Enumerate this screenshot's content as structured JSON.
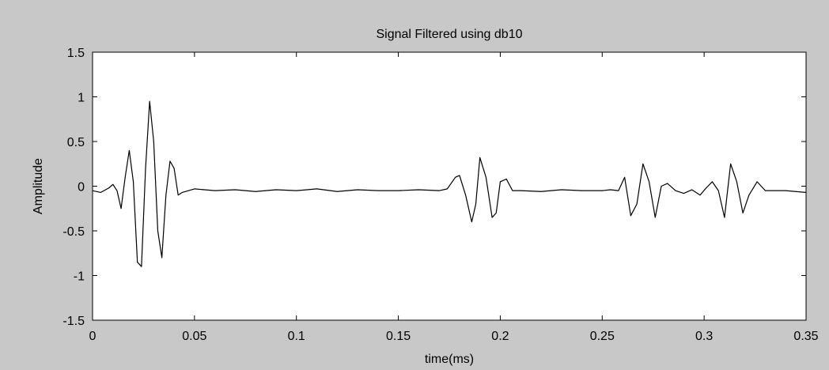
{
  "chart_data": {
    "type": "line",
    "title": "Signal Filtered using db10",
    "xlabel": "time(ms)",
    "ylabel": "Amplitude",
    "xlim": [
      0,
      0.35
    ],
    "ylim": [
      -1.5,
      1.5
    ],
    "xticks": [
      0,
      0.05,
      0.1,
      0.15,
      0.2,
      0.25,
      0.3,
      0.35
    ],
    "xtick_labels": [
      "0",
      "0.05",
      "0.1",
      "0.15",
      "0.2",
      "0.25",
      "0.3",
      "0.35"
    ],
    "yticks": [
      1.5,
      1,
      0.5,
      0,
      -0.5,
      -1,
      -1.5
    ],
    "ytick_labels": [
      "1.5",
      "1",
      "0.5",
      "0",
      "-0.5",
      "-1",
      "-1.5"
    ],
    "grid": false,
    "line_color": "#000000",
    "background_color": "#c8c8c8",
    "plot_background_color": "#ffffff",
    "series": [
      {
        "x": [
          0.0,
          0.004,
          0.008,
          0.01,
          0.012,
          0.014,
          0.016,
          0.018,
          0.02,
          0.022,
          0.024,
          0.026,
          0.028,
          0.03,
          0.032,
          0.034,
          0.036,
          0.038,
          0.04,
          0.042,
          0.044,
          0.05,
          0.06,
          0.07,
          0.08,
          0.09,
          0.1,
          0.11,
          0.12,
          0.13,
          0.14,
          0.15,
          0.16,
          0.17,
          0.174,
          0.178,
          0.18,
          0.183,
          0.186,
          0.188,
          0.19,
          0.193,
          0.196,
          0.198,
          0.2,
          0.203,
          0.206,
          0.21,
          0.22,
          0.23,
          0.24,
          0.25,
          0.254,
          0.258,
          0.261,
          0.264,
          0.267,
          0.27,
          0.273,
          0.276,
          0.279,
          0.282,
          0.286,
          0.29,
          0.294,
          0.298,
          0.301,
          0.304,
          0.307,
          0.31,
          0.313,
          0.316,
          0.319,
          0.322,
          0.326,
          0.33,
          0.34,
          0.35
        ],
        "values": [
          -0.05,
          -0.07,
          -0.02,
          0.02,
          -0.05,
          -0.25,
          0.1,
          0.4,
          0.05,
          -0.85,
          -0.9,
          0.2,
          0.95,
          0.5,
          -0.5,
          -0.8,
          -0.1,
          0.28,
          0.2,
          -0.1,
          -0.07,
          -0.03,
          -0.05,
          -0.04,
          -0.06,
          -0.04,
          -0.05,
          -0.03,
          -0.06,
          -0.04,
          -0.05,
          -0.05,
          -0.04,
          -0.05,
          -0.03,
          0.1,
          0.12,
          -0.1,
          -0.4,
          -0.2,
          0.32,
          0.1,
          -0.35,
          -0.3,
          0.05,
          0.08,
          -0.05,
          -0.05,
          -0.06,
          -0.04,
          -0.05,
          -0.05,
          -0.04,
          -0.05,
          0.1,
          -0.33,
          -0.2,
          0.25,
          0.05,
          -0.35,
          0.0,
          0.03,
          -0.05,
          -0.08,
          -0.04,
          -0.1,
          -0.02,
          0.05,
          -0.05,
          -0.35,
          0.25,
          0.05,
          -0.3,
          -0.1,
          0.05,
          -0.05,
          -0.05,
          -0.07
        ]
      }
    ]
  }
}
